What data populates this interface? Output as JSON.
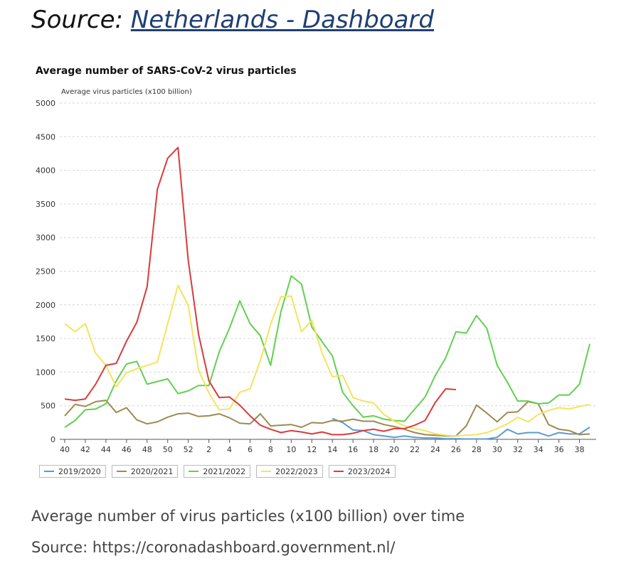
{
  "header": {
    "source_prefix": "Source:",
    "source_link_text": "Netherlands - Dashboard"
  },
  "caption": "Average number of virus particles (x100 billion) over time",
  "caption_source": "Source: https://coronadashboard.government.nl/",
  "chart_data": {
    "type": "line",
    "title": "Average number of SARS-CoV-2 virus particles",
    "ylabel": "Average virus particles (x100 billion)",
    "xlabel": "",
    "ylim": [
      0,
      5000
    ],
    "yticks": [
      0,
      500,
      1000,
      1500,
      2000,
      2500,
      3000,
      3500,
      4000,
      4500,
      5000
    ],
    "grid": true,
    "legend_position": "bottom",
    "x": [
      "40",
      "41",
      "42",
      "43",
      "44",
      "45",
      "46",
      "47",
      "48",
      "49",
      "50",
      "51",
      "52",
      "1",
      "2",
      "3",
      "4",
      "5",
      "6",
      "7",
      "8",
      "9",
      "10",
      "11",
      "12",
      "13",
      "14",
      "15",
      "16",
      "17",
      "18",
      "19",
      "20",
      "21",
      "22",
      "23",
      "24",
      "25",
      "26",
      "27",
      "28",
      "29",
      "30",
      "31",
      "32",
      "33",
      "34",
      "35",
      "36",
      "37",
      "38",
      "39"
    ],
    "x_tick_labels": [
      "40",
      "42",
      "44",
      "46",
      "48",
      "50",
      "52",
      "2",
      "4",
      "6",
      "8",
      "10",
      "12",
      "14",
      "16",
      "18",
      "20",
      "22",
      "24",
      "26",
      "28",
      "30",
      "32",
      "34",
      "36",
      "38"
    ],
    "series": [
      {
        "name": "2019/2020",
        "color": "#5b9bd5",
        "values": [
          null,
          null,
          null,
          null,
          null,
          null,
          null,
          null,
          null,
          null,
          null,
          null,
          null,
          null,
          null,
          null,
          null,
          null,
          null,
          null,
          null,
          null,
          null,
          null,
          null,
          null,
          310,
          250,
          140,
          130,
          70,
          50,
          30,
          50,
          30,
          20,
          20,
          10,
          10,
          5,
          5,
          5,
          30,
          150,
          80,
          100,
          100,
          50,
          100,
          80,
          80,
          180
        ]
      },
      {
        "name": "2020/2021",
        "color": "#9e8a4f",
        "values": [
          350,
          520,
          490,
          560,
          580,
          400,
          470,
          290,
          230,
          260,
          330,
          380,
          390,
          340,
          350,
          380,
          320,
          240,
          230,
          380,
          200,
          210,
          220,
          180,
          250,
          240,
          280,
          270,
          300,
          270,
          270,
          220,
          190,
          150,
          100,
          70,
          60,
          50,
          50,
          200,
          510,
          390,
          260,
          400,
          410,
          560,
          530,
          220,
          150,
          130,
          70,
          80
        ]
      },
      {
        "name": "2021/2022",
        "color": "#62d051",
        "values": [
          180,
          280,
          440,
          450,
          530,
          870,
          1120,
          1160,
          820,
          860,
          900,
          680,
          720,
          800,
          800,
          1300,
          1650,
          2060,
          1720,
          1540,
          1100,
          1900,
          2430,
          2310,
          1670,
          1450,
          1240,
          700,
          500,
          330,
          350,
          300,
          280,
          270,
          450,
          630,
          950,
          1210,
          1600,
          1580,
          1840,
          1650,
          1100,
          850,
          570,
          570,
          530,
          540,
          660,
          660,
          820,
          1420
        ]
      },
      {
        "name": "2022/2023",
        "color": "#f2e45c",
        "values": [
          1720,
          1600,
          1720,
          1280,
          1100,
          780,
          990,
          1050,
          1100,
          1150,
          1720,
          2290,
          1990,
          1030,
          690,
          440,
          450,
          700,
          750,
          1170,
          1710,
          2120,
          2130,
          1600,
          1770,
          1280,
          930,
          950,
          620,
          570,
          540,
          370,
          270,
          200,
          160,
          130,
          80,
          60,
          50,
          60,
          70,
          100,
          160,
          230,
          330,
          260,
          370,
          430,
          470,
          450,
          490,
          520
        ]
      },
      {
        "name": "2023/2024",
        "color": "#d93b3b",
        "values": [
          600,
          580,
          600,
          820,
          1100,
          1130,
          1460,
          1740,
          2270,
          3720,
          4180,
          4340,
          2660,
          1560,
          870,
          620,
          630,
          510,
          350,
          210,
          150,
          100,
          130,
          110,
          80,
          110,
          70,
          70,
          90,
          130,
          150,
          120,
          160,
          160,
          210,
          280,
          550,
          750,
          740,
          null,
          null,
          null,
          null,
          null,
          null,
          null,
          null,
          null,
          null,
          null,
          null,
          null
        ]
      }
    ]
  }
}
